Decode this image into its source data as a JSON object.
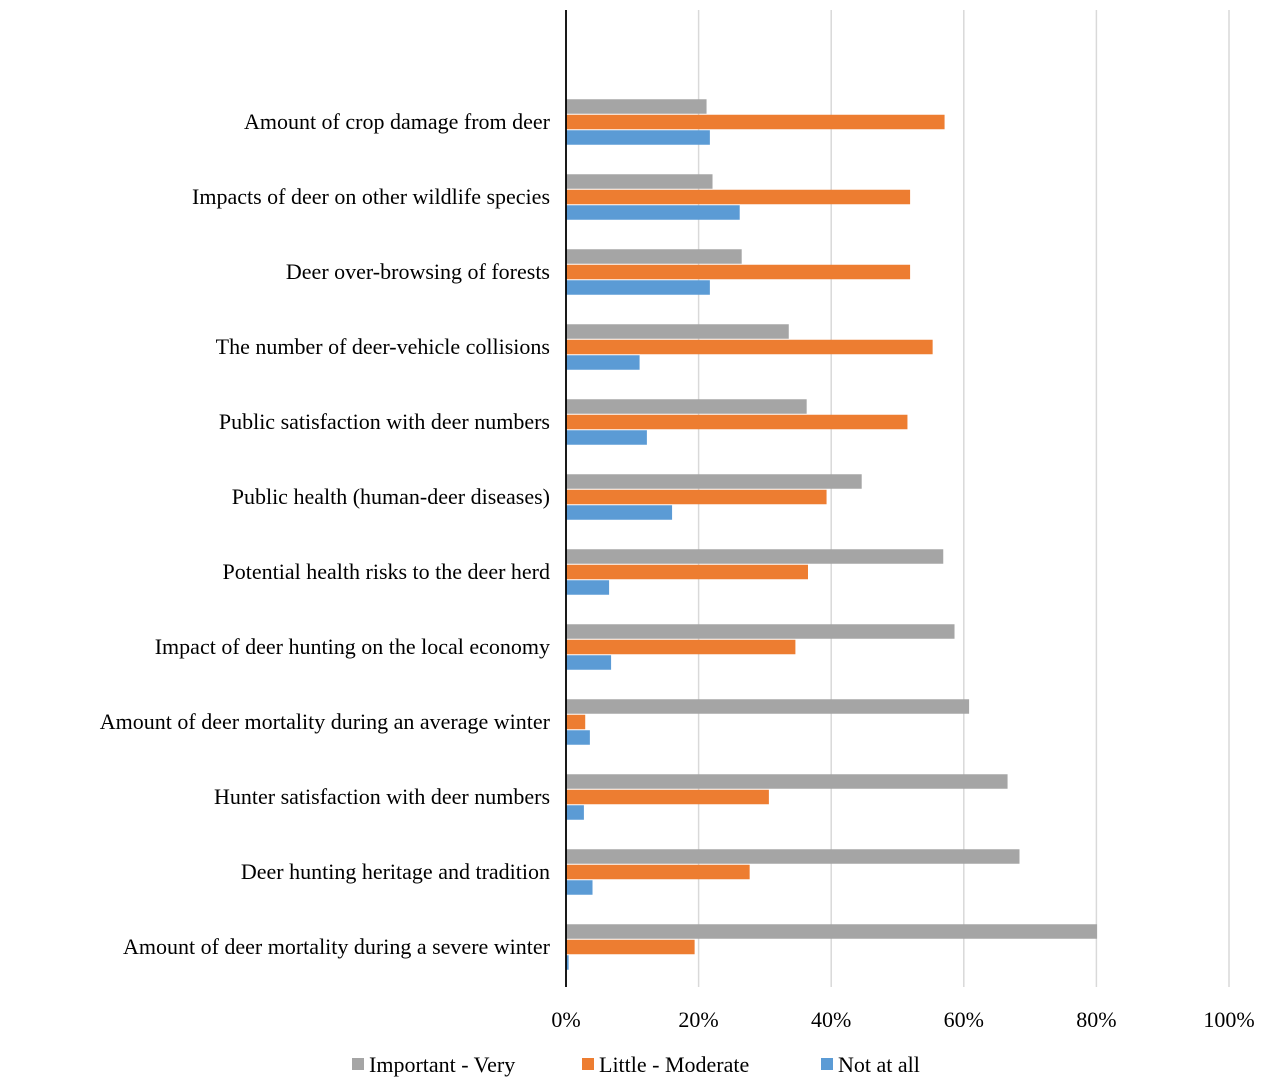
{
  "chart_data": {
    "type": "bar",
    "orientation": "horizontal",
    "categories": [
      "Amount of crop damage from deer",
      "Impacts of deer on other wildlife species",
      "Deer over-browsing of forests",
      "The number of deer-vehicle collisions",
      "Public satisfaction with deer numbers",
      "Public health (human-deer diseases)",
      "Potential health risks to the deer herd",
      "Impact of deer hunting on the local economy",
      "Amount of deer mortality during an average winter",
      "Hunter satisfaction with deer numbers",
      "Deer hunting heritage and tradition",
      "Amount of deer mortality during a severe winter"
    ],
    "series": [
      {
        "name": "Important - Very",
        "color": "#a5a5a5",
        "values": [
          21.2,
          22.1,
          26.5,
          33.6,
          36.3,
          44.6,
          56.9,
          58.6,
          60.8,
          66.6,
          68.4,
          80.1
        ]
      },
      {
        "name": "Little - Moderate",
        "color": "#ed7d31",
        "values": [
          57.1,
          51.9,
          51.9,
          55.3,
          51.5,
          39.3,
          36.5,
          34.6,
          2.9,
          30.6,
          27.7,
          19.4
        ]
      },
      {
        "name": "Not at all",
        "color": "#5b9bd5",
        "values": [
          21.7,
          26.2,
          21.7,
          11.1,
          12.2,
          16.0,
          6.5,
          6.8,
          3.6,
          2.7,
          4.0,
          0.4
        ]
      }
    ],
    "x_ticks": [
      "0%",
      "20%",
      "40%",
      "60%",
      "80%",
      "100%"
    ],
    "xlim": [
      0,
      100
    ],
    "grid": true,
    "legend_position": "bottom",
    "title": "",
    "xlabel": "",
    "ylabel": ""
  }
}
